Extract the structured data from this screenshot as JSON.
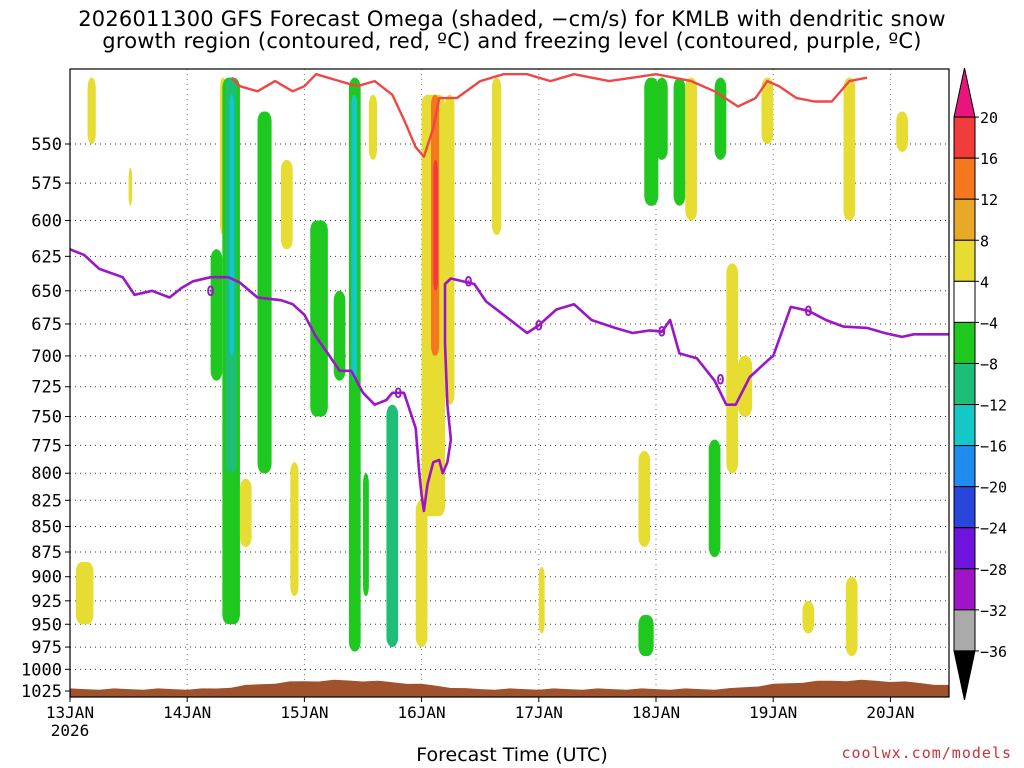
{
  "title": {
    "line1": "2026011300 GFS Forecast Omega (shaded, −cm/s) for KMLB with dendritic snow",
    "line2": "growth region (contoured, red, ºC) and freezing level (contoured, purple, ºC)"
  },
  "credit": "coolwx.com/models",
  "chart_data": {
    "type": "heatmap",
    "xlabel": "Forecast Time (UTC)",
    "x_ticks": [
      "13JAN\n2026",
      "14JAN",
      "15JAN",
      "16JAN",
      "17JAN",
      "18JAN",
      "19JAN",
      "20JAN"
    ],
    "x_range_days": [
      0,
      7.5
    ],
    "y_ticks": [
      550,
      575,
      600,
      625,
      650,
      675,
      700,
      725,
      750,
      775,
      800,
      825,
      850,
      875,
      900,
      925,
      950,
      975,
      1000,
      1025
    ],
    "y_range_hpa": [
      505,
      1032
    ],
    "y_scale": "log-pressure",
    "grid": "dotted",
    "colorbar": {
      "labels": [
        "20",
        "16",
        "12",
        "8",
        "4",
        "−4",
        "−8",
        "−12",
        "−16",
        "−20",
        "−24",
        "−28",
        "−32",
        "−36"
      ],
      "bands": [
        {
          "range": ">20",
          "color": "#e8157a"
        },
        {
          "range": "16 to 20",
          "color": "#f23c3c"
        },
        {
          "range": "12 to 16",
          "color": "#f5781e"
        },
        {
          "range": "8 to 12",
          "color": "#e8a82a"
        },
        {
          "range": "4 to 8",
          "color": "#e6dc32"
        },
        {
          "range": "-4 to 4",
          "color": "#ffffff"
        },
        {
          "range": "-8 to -4",
          "color": "#1ec81e"
        },
        {
          "range": "-12 to -8",
          "color": "#1ebe78"
        },
        {
          "range": "-16 to -12",
          "color": "#14c8c8"
        },
        {
          "range": "-20 to -16",
          "color": "#1e8cf0"
        },
        {
          "range": "-24 to -20",
          "color": "#2846dc"
        },
        {
          "range": "-28 to -24",
          "color": "#6e14dc"
        },
        {
          "range": "-32 to -28",
          "color": "#a014c8"
        },
        {
          "range": "-36 to -32",
          "color": "#aaaaaa"
        },
        {
          "range": "<-36",
          "color": "#000000"
        }
      ]
    },
    "freezing_level": {
      "label": "0",
      "color": "#9a16c8",
      "points": [
        [
          0.0,
          620
        ],
        [
          0.12,
          624
        ],
        [
          0.25,
          634
        ],
        [
          0.45,
          640
        ],
        [
          0.55,
          653
        ],
        [
          0.7,
          650
        ],
        [
          0.85,
          655
        ],
        [
          0.95,
          648
        ],
        [
          1.05,
          643
        ],
        [
          1.2,
          640
        ],
        [
          1.35,
          640
        ],
        [
          1.45,
          644
        ],
        [
          1.6,
          655
        ],
        [
          1.8,
          657
        ],
        [
          1.9,
          660
        ],
        [
          2.0,
          668
        ],
        [
          2.1,
          685
        ],
        [
          2.2,
          698
        ],
        [
          2.3,
          712
        ],
        [
          2.4,
          712
        ],
        [
          2.5,
          730
        ],
        [
          2.6,
          740
        ],
        [
          2.7,
          736
        ],
        [
          2.75,
          730
        ],
        [
          2.85,
          730
        ],
        [
          2.95,
          760
        ],
        [
          2.98,
          800
        ],
        [
          3.0,
          820
        ],
        [
          3.02,
          835
        ],
        [
          3.05,
          810
        ],
        [
          3.1,
          790
        ],
        [
          3.15,
          788
        ],
        [
          3.18,
          800
        ],
        [
          3.22,
          790
        ],
        [
          3.25,
          770
        ],
        [
          3.22,
          740
        ],
        [
          3.2,
          690
        ],
        [
          3.2,
          645
        ],
        [
          3.25,
          641
        ],
        [
          3.45,
          645
        ],
        [
          3.55,
          658
        ],
        [
          3.7,
          668
        ],
        [
          3.9,
          682
        ],
        [
          4.0,
          676
        ],
        [
          4.15,
          664
        ],
        [
          4.3,
          660
        ],
        [
          4.45,
          672
        ],
        [
          4.65,
          678
        ],
        [
          4.8,
          682
        ],
        [
          4.95,
          680
        ],
        [
          5.05,
          681
        ],
        [
          5.12,
          672
        ],
        [
          5.2,
          698
        ],
        [
          5.35,
          702
        ],
        [
          5.5,
          720
        ],
        [
          5.6,
          740
        ],
        [
          5.68,
          740
        ],
        [
          5.8,
          717
        ],
        [
          5.95,
          704
        ],
        [
          6.0,
          700
        ],
        [
          6.15,
          662
        ],
        [
          6.3,
          665
        ],
        [
          6.45,
          672
        ],
        [
          6.6,
          677
        ],
        [
          6.8,
          678
        ],
        [
          6.95,
          682
        ],
        [
          7.1,
          685
        ],
        [
          7.2,
          683
        ],
        [
          7.5,
          683
        ]
      ]
    },
    "dgz_top_contour": {
      "color": "#f04646",
      "points": [
        [
          1.38,
          510
        ],
        [
          1.45,
          515
        ],
        [
          1.6,
          518
        ],
        [
          1.75,
          512
        ],
        [
          1.9,
          518
        ],
        [
          2.0,
          515
        ],
        [
          2.1,
          508
        ],
        [
          2.3,
          512
        ],
        [
          2.45,
          515
        ],
        [
          2.6,
          512
        ],
        [
          2.75,
          520
        ],
        [
          2.85,
          535
        ],
        [
          2.95,
          552
        ],
        [
          3.02,
          558
        ],
        [
          3.1,
          540
        ],
        [
          3.15,
          522
        ],
        [
          3.3,
          522
        ],
        [
          3.5,
          512
        ],
        [
          3.7,
          508
        ],
        [
          3.9,
          508
        ],
        [
          4.1,
          512
        ],
        [
          4.3,
          508
        ],
        [
          4.6,
          512
        ],
        [
          4.8,
          510
        ],
        [
          5.0,
          508
        ],
        [
          5.3,
          512
        ],
        [
          5.5,
          518
        ],
        [
          5.7,
          527
        ],
        [
          5.85,
          522
        ],
        [
          5.95,
          512
        ],
        [
          6.05,
          515
        ],
        [
          6.2,
          522
        ],
        [
          6.35,
          524
        ],
        [
          6.5,
          524
        ],
        [
          6.65,
          512
        ],
        [
          6.8,
          510
        ]
      ]
    },
    "omega_regions": [
      {
        "x": [
          0.05,
          0.2
        ],
        "p": [
          885,
          950
        ],
        "value": 5
      },
      {
        "x": [
          0.15,
          0.22
        ],
        "p": [
          510,
          550
        ],
        "value": 5
      },
      {
        "x": [
          0.5,
          0.53
        ],
        "p": [
          565,
          590
        ],
        "value": 5
      },
      {
        "x": [
          1.2,
          1.3
        ],
        "p": [
          620,
          720
        ],
        "value": -5
      },
      {
        "x": [
          1.28,
          1.33
        ],
        "p": [
          510,
          610
        ],
        "value": 5
      },
      {
        "x": [
          1.3,
          1.45
        ],
        "p": [
          510,
          950
        ],
        "value": -5
      },
      {
        "x": [
          1.33,
          1.42
        ],
        "p": [
          510,
          800
        ],
        "value": -10
      },
      {
        "x": [
          1.36,
          1.4
        ],
        "p": [
          520,
          700
        ],
        "value": -14
      },
      {
        "x": [
          1.45,
          1.55
        ],
        "p": [
          805,
          870
        ],
        "value": 5
      },
      {
        "x": [
          1.6,
          1.72
        ],
        "p": [
          530,
          800
        ],
        "value": -5
      },
      {
        "x": [
          1.8,
          1.9
        ],
        "p": [
          560,
          620
        ],
        "value": 5
      },
      {
        "x": [
          1.88,
          1.95
        ],
        "p": [
          790,
          920
        ],
        "value": 5
      },
      {
        "x": [
          2.05,
          2.2
        ],
        "p": [
          600,
          750
        ],
        "value": -5
      },
      {
        "x": [
          2.25,
          2.35
        ],
        "p": [
          650,
          720
        ],
        "value": -7
      },
      {
        "x": [
          2.38,
          2.48
        ],
        "p": [
          510,
          980
        ],
        "value": -7
      },
      {
        "x": [
          2.4,
          2.45
        ],
        "p": [
          520,
          720
        ],
        "value": -12
      },
      {
        "x": [
          2.5,
          2.55
        ],
        "p": [
          800,
          920
        ],
        "value": -7
      },
      {
        "x": [
          2.55,
          2.62
        ],
        "p": [
          520,
          560
        ],
        "value": 5
      },
      {
        "x": [
          2.7,
          2.8
        ],
        "p": [
          740,
          975
        ],
        "value": -10
      },
      {
        "x": [
          2.95,
          3.05
        ],
        "p": [
          825,
          975
        ],
        "value": 5
      },
      {
        "x": [
          3.0,
          3.2
        ],
        "p": [
          520,
          840
        ],
        "value": 8
      },
      {
        "x": [
          3.08,
          3.15
        ],
        "p": [
          520,
          700
        ],
        "value": 14
      },
      {
        "x": [
          3.1,
          3.14
        ],
        "p": [
          560,
          650
        ],
        "value": 18
      },
      {
        "x": [
          3.2,
          3.28
        ],
        "p": [
          520,
          740
        ],
        "value": 6
      },
      {
        "x": [
          3.6,
          3.68
        ],
        "p": [
          510,
          610
        ],
        "value": 5
      },
      {
        "x": [
          4.0,
          4.05
        ],
        "p": [
          890,
          960
        ],
        "value": 5
      },
      {
        "x": [
          4.9,
          5.02
        ],
        "p": [
          510,
          590
        ],
        "value": -5
      },
      {
        "x": [
          4.85,
          4.98
        ],
        "p": [
          940,
          985
        ],
        "value": -7
      },
      {
        "x": [
          5.0,
          5.1
        ],
        "p": [
          510,
          560
        ],
        "value": -5
      },
      {
        "x": [
          5.15,
          5.25
        ],
        "p": [
          510,
          590
        ],
        "value": -5
      },
      {
        "x": [
          5.25,
          5.35
        ],
        "p": [
          510,
          600
        ],
        "value": 5
      },
      {
        "x": [
          4.85,
          4.95
        ],
        "p": [
          780,
          870
        ],
        "value": 5
      },
      {
        "x": [
          5.45,
          5.55
        ],
        "p": [
          770,
          880
        ],
        "value": -5
      },
      {
        "x": [
          5.5,
          5.6
        ],
        "p": [
          510,
          560
        ],
        "value": -5
      },
      {
        "x": [
          5.6,
          5.7
        ],
        "p": [
          630,
          800
        ],
        "value": 5
      },
      {
        "x": [
          5.7,
          5.82
        ],
        "p": [
          700,
          750
        ],
        "value": 5
      },
      {
        "x": [
          5.9,
          6.0
        ],
        "p": [
          510,
          550
        ],
        "value": 5
      },
      {
        "x": [
          6.25,
          6.35
        ],
        "p": [
          925,
          960
        ],
        "value": 5
      },
      {
        "x": [
          6.62,
          6.72
        ],
        "p": [
          900,
          985
        ],
        "value": 5
      },
      {
        "x": [
          6.6,
          6.7
        ],
        "p": [
          510,
          600
        ],
        "value": 5
      },
      {
        "x": [
          7.05,
          7.15
        ],
        "p": [
          530,
          555
        ],
        "value": 5
      }
    ],
    "topography": {
      "color": "#a0522d",
      "surface_hpa_min": 1012,
      "surface_hpa_max": 1022
    }
  }
}
